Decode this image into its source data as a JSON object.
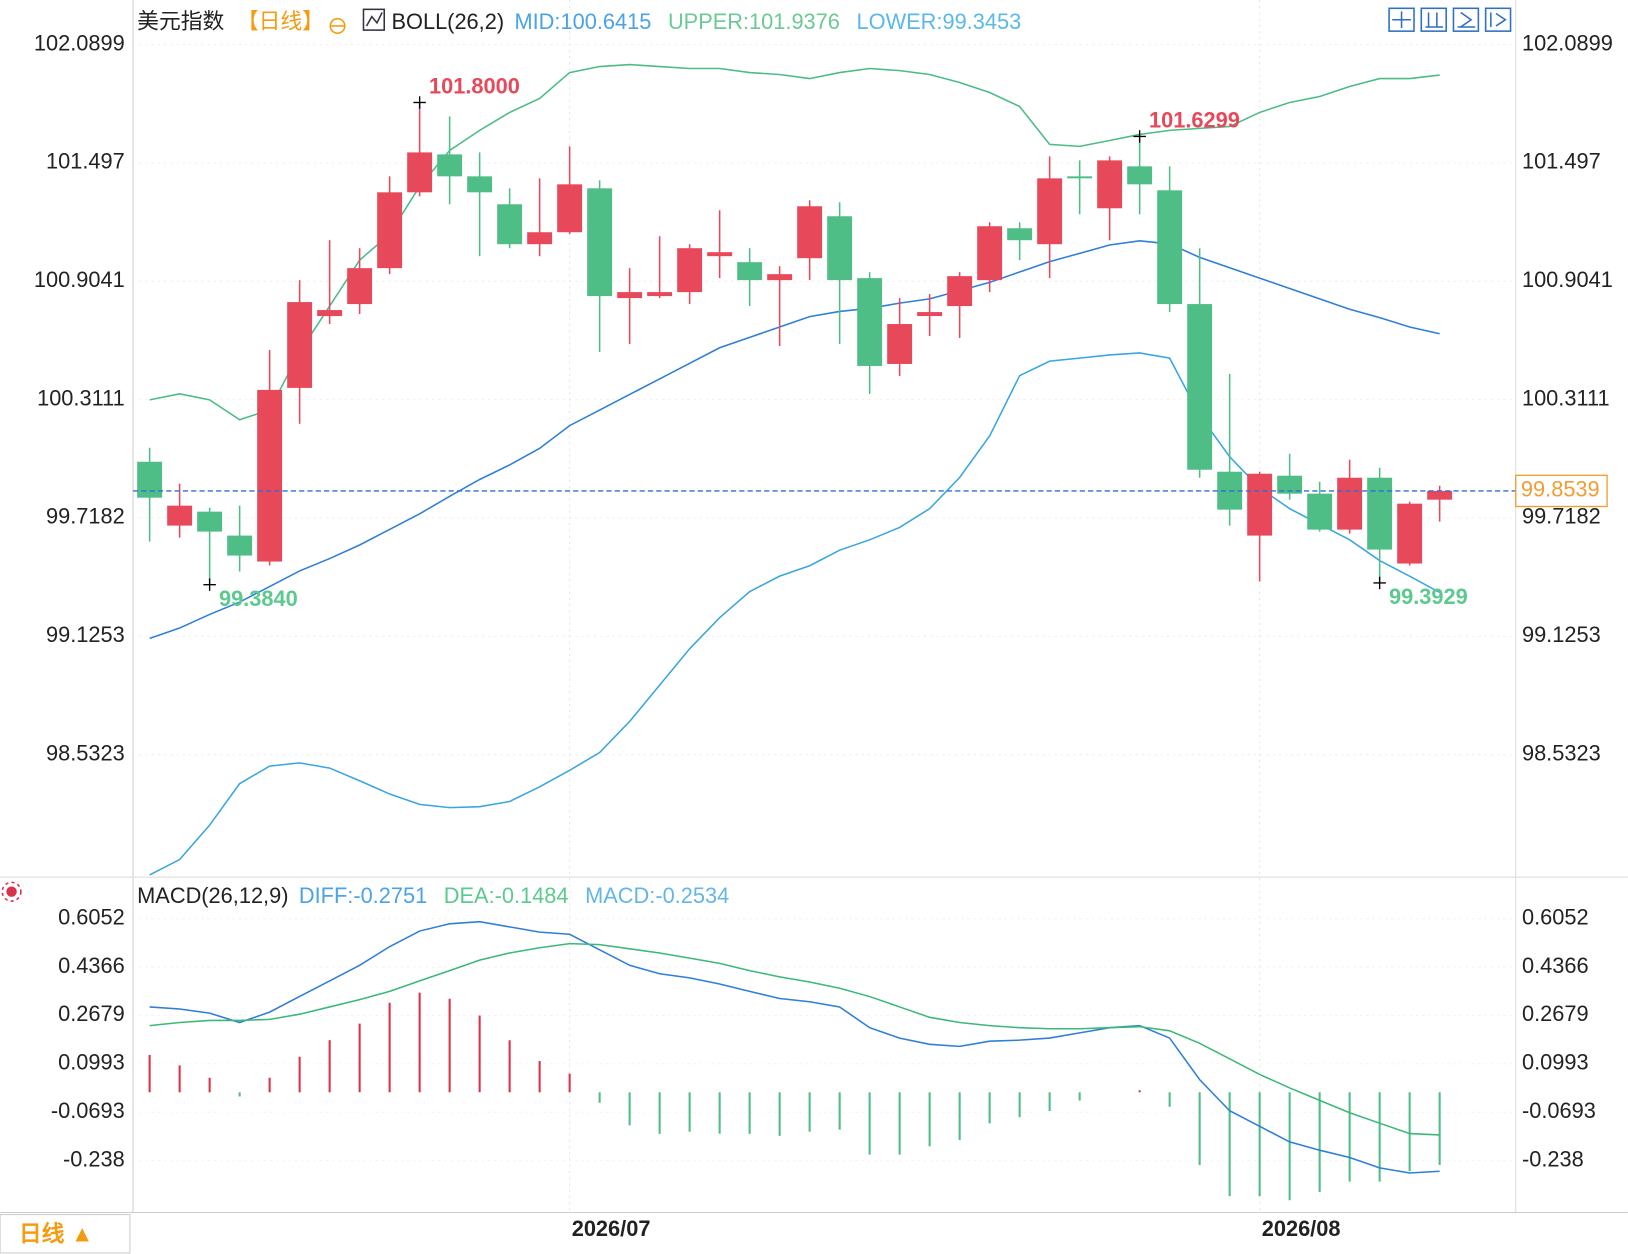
{
  "header": {
    "title": "美元指数",
    "period": "【日线】"
  },
  "footer": {
    "period_button": "日线 ▲"
  },
  "chart_data": [
    {
      "type": "candlestick",
      "indicator": "BOLL(26,2)",
      "categories": [
        null,
        null,
        null,
        null,
        null,
        null,
        null,
        null,
        null,
        null,
        null,
        null,
        null,
        null,
        "2026/07",
        null,
        null,
        null,
        null,
        null,
        null,
        null,
        null,
        null,
        null,
        null,
        null,
        null,
        null,
        null,
        null,
        null,
        null,
        null,
        null,
        null,
        null,
        "2026/08",
        null,
        null,
        null,
        null,
        null,
        null
      ],
      "open": [
        100,
        99.68,
        99.75,
        99.63,
        99.5,
        100.37,
        100.73,
        100.79,
        100.97,
        101.35,
        101.54,
        101.43,
        101.29,
        101.09,
        101.15,
        101.37,
        100.82,
        100.83,
        100.85,
        101.03,
        101,
        100.91,
        101.02,
        101.23,
        100.92,
        100.49,
        100.73,
        100.78,
        100.91,
        101.17,
        101.09,
        101.43,
        101.27,
        101.48,
        101.36,
        100.79,
        99.95,
        99.63,
        99.93,
        99.84,
        99.66,
        99.92,
        99.49,
        99.81
      ],
      "high": [
        100.07,
        99.89,
        99.77,
        99.78,
        100.56,
        100.91,
        101.11,
        101.07,
        101.43,
        101.8,
        101.73,
        101.55,
        101.37,
        101.42,
        101.58,
        101.41,
        100.97,
        101.13,
        101.09,
        101.26,
        101.07,
        100.98,
        101.31,
        101.3,
        100.95,
        100.82,
        100.84,
        100.95,
        101.2,
        101.2,
        101.53,
        101.51,
        101.53,
        101.6299,
        101.48,
        101.07,
        100.44,
        99.95,
        100.04,
        99.9,
        100.01,
        99.97,
        99.8,
        99.88
      ],
      "low": [
        99.6,
        99.62,
        99.384,
        99.45,
        99.48,
        100.19,
        100.69,
        100.74,
        100.94,
        101.33,
        101.29,
        101.03,
        101.07,
        101.03,
        101.14,
        100.55,
        100.59,
        100.82,
        100.79,
        100.92,
        100.78,
        100.58,
        100.91,
        100.59,
        100.34,
        100.43,
        100.63,
        100.62,
        100.85,
        101.01,
        100.92,
        101.24,
        101.11,
        101.24,
        100.75,
        99.92,
        99.68,
        99.4,
        99.81,
        99.65,
        99.64,
        99.3929,
        99.48,
        99.7
      ],
      "close": [
        99.82,
        99.78,
        99.65,
        99.53,
        100.36,
        100.8,
        100.76,
        100.97,
        101.35,
        101.55,
        101.43,
        101.35,
        101.09,
        101.15,
        101.39,
        100.83,
        100.85,
        100.85,
        101.07,
        101.05,
        100.91,
        100.94,
        101.28,
        100.91,
        100.48,
        100.69,
        100.75,
        100.93,
        101.18,
        101.11,
        101.42,
        101.42,
        101.51,
        101.39,
        100.79,
        99.96,
        99.76,
        99.94,
        99.84,
        99.66,
        99.92,
        99.56,
        99.79,
        99.8539
      ],
      "up_color": "#e8495a",
      "down_color": "#4ebd86",
      "series": [
        {
          "name": "MID:",
          "color": "#2f7fd6",
          "values": [
            99.115,
            99.167,
            99.235,
            99.297,
            99.375,
            99.453,
            99.515,
            99.583,
            99.661,
            99.739,
            99.827,
            99.911,
            99.984,
            100.067,
            100.181,
            100.259,
            100.337,
            100.415,
            100.493,
            100.571,
            100.623,
            100.675,
            100.727,
            100.753,
            100.769,
            100.795,
            100.816,
            100.857,
            100.899,
            100.951,
            101.003,
            101.044,
            101.086,
            101.107,
            101.091,
            101.024,
            100.972,
            100.92,
            100.868,
            100.816,
            100.764,
            100.722,
            100.675,
            100.6415
          ]
        },
        {
          "name": "UPPER:",
          "color": "#4cbc86",
          "values": [
            100.31,
            100.34,
            100.31,
            100.21,
            100.26,
            100.55,
            100.78,
            101.01,
            101.14,
            101.38,
            101.56,
            101.66,
            101.75,
            101.82,
            101.95,
            101.98,
            101.99,
            101.98,
            101.97,
            101.97,
            101.95,
            101.94,
            101.92,
            101.95,
            101.97,
            101.96,
            101.94,
            101.9,
            101.85,
            101.78,
            101.59,
            101.58,
            101.61,
            101.64,
            101.66,
            101.67,
            101.68,
            101.75,
            101.8,
            101.83,
            101.88,
            101.92,
            101.92,
            101.9376
          ]
        },
        {
          "name": "LOWER:",
          "color": "#3aa6e0",
          "values": [
            97.93,
            98.007,
            98.179,
            98.387,
            98.475,
            98.491,
            98.465,
            98.402,
            98.335,
            98.283,
            98.267,
            98.272,
            98.298,
            98.371,
            98.454,
            98.543,
            98.699,
            98.881,
            99.063,
            99.219,
            99.349,
            99.427,
            99.479,
            99.557,
            99.609,
            99.671,
            99.765,
            99.921,
            100.129,
            100.431,
            100.504,
            100.519,
            100.535,
            100.545,
            100.519,
            100.233,
            100.025,
            99.869,
            99.765,
            99.687,
            99.609,
            99.505,
            99.427,
            99.3453
          ]
        }
      ],
      "ylim": [
        97.929,
        102.2875
      ],
      "yticks": [
        98.5323,
        99.1253,
        99.7182,
        100.3111,
        100.9041,
        101.497,
        102.0899
      ],
      "annotations": [
        {
          "label": "101.8000",
          "value": 101.8
        },
        {
          "label": "99.3840",
          "value": 99.384
        },
        {
          "label": "101.6299",
          "value": 101.6299
        },
        {
          "label": "99.3929",
          "value": 99.3929
        }
      ]
    },
    {
      "type": "macd",
      "indicator": "MACD(26,12,9)",
      "up_color": "#d9334a",
      "down_color": "#4ebd86",
      "series": [
        {
          "name": "DIFF:",
          "color": "#2f7fd6",
          "values": [
            0.2976,
            0.2903,
            0.2759,
            0.2434,
            0.2796,
            0.3343,
            0.3885,
            0.4428,
            0.5079,
            0.5622,
            0.5873,
            0.5945,
            0.5765,
            0.5584,
            0.5509,
            0.4966,
            0.4428,
            0.4134,
            0.399,
            0.3774,
            0.3519,
            0.3268,
            0.3158,
            0.2976,
            0.2253,
            0.1891,
            0.1674,
            0.1602,
            0.1783,
            0.1819,
            0.1891,
            0.2072,
            0.2253,
            0.2325,
            0.1891,
            0.0444,
            -0.0642,
            -0.1184,
            -0.1727,
            -0.2017,
            -0.227,
            -0.2632,
            -0.2813,
            -0.2751
          ]
        },
        {
          "name": "DEA:",
          "color": "#3cb878",
          "values": [
            0.2325,
            0.2434,
            0.2506,
            0.2506,
            0.2542,
            0.2723,
            0.2976,
            0.323,
            0.3519,
            0.3885,
            0.4243,
            0.4606,
            0.4858,
            0.5039,
            0.5184,
            0.5148,
            0.5003,
            0.4858,
            0.4677,
            0.4496,
            0.4243,
            0.4026,
            0.3845,
            0.3628,
            0.3338,
            0.2976,
            0.2615,
            0.2434,
            0.2325,
            0.2253,
            0.2217,
            0.2217,
            0.2253,
            0.2289,
            0.2144,
            0.171,
            0.1168,
            0.0625,
            0.0155,
            -0.0279,
            -0.0713,
            -0.1075,
            -0.1437,
            -0.1484
          ]
        }
      ],
      "histogram": {
        "name": "MACD:",
        "color": "#58aee6",
        "values": [
          0.1302,
          0.0938,
          0.0506,
          -0.0144,
          0.0508,
          0.124,
          0.1818,
          0.2396,
          0.312,
          0.3474,
          0.326,
          0.2678,
          0.1814,
          0.109,
          0.065,
          -0.0364,
          -0.115,
          -0.1448,
          -0.1374,
          -0.1444,
          -0.1448,
          -0.1516,
          -0.1374,
          -0.1304,
          -0.217,
          -0.217,
          -0.1882,
          -0.1664,
          -0.1084,
          -0.0868,
          -0.0652,
          -0.029,
          0,
          0.0072,
          -0.0506,
          -0.2532,
          -0.362,
          -0.3618,
          -0.3764,
          -0.3476,
          -0.3114,
          -0.3114,
          -0.2752,
          -0.2534
        ]
      },
      "ylim": [
        -0.408,
        0.7318
      ],
      "yticks": [
        -0.238,
        -0.0693,
        0.0993,
        0.2679,
        0.4366,
        0.6052
      ]
    }
  ]
}
